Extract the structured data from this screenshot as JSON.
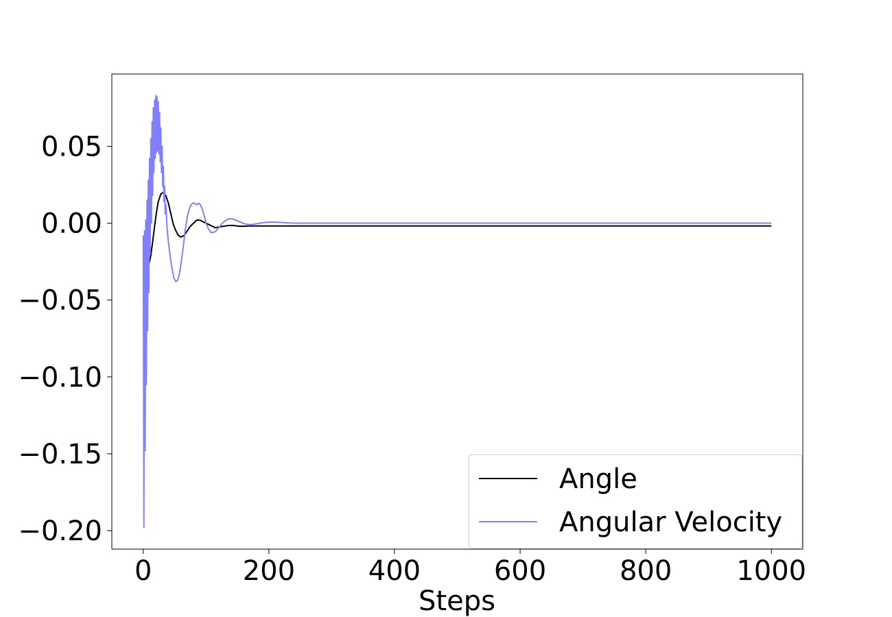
{
  "chart_data": {
    "type": "line",
    "title": "",
    "xlabel": "Steps",
    "ylabel": "",
    "xlim": [
      -50,
      1050
    ],
    "ylim": [
      -0.212,
      0.097
    ],
    "xticks": [
      0,
      200,
      400,
      600,
      800,
      1000
    ],
    "xtick_labels": [
      "0",
      "200",
      "400",
      "600",
      "800",
      "1000"
    ],
    "yticks": [
      0.05,
      0.0,
      -0.05,
      -0.1,
      -0.15,
      -0.2
    ],
    "ytick_labels": [
      "0.05",
      "0.00",
      "−0.05",
      "−0.10",
      "−0.15",
      "−0.20"
    ],
    "grid": false,
    "legend_position": "lower right",
    "series": [
      {
        "name": "Angle",
        "color": "#000000",
        "x": [
          0,
          3,
          6,
          9,
          12,
          15,
          18,
          21,
          24,
          28,
          32,
          36,
          40,
          44,
          48,
          52,
          56,
          60,
          65,
          70,
          75,
          80,
          85,
          90,
          95,
          100,
          105,
          110,
          115,
          120,
          128,
          136,
          144,
          152,
          160,
          170,
          180,
          195,
          210,
          230,
          260,
          300,
          400,
          600,
          800,
          1000
        ],
        "y": [
          -0.01,
          -0.022,
          -0.028,
          -0.027,
          -0.021,
          -0.012,
          -0.002,
          0.007,
          0.014,
          0.019,
          0.02,
          0.018,
          0.013,
          0.006,
          -0.001,
          -0.005,
          -0.008,
          -0.009,
          -0.008,
          -0.005,
          -0.002,
          0.0,
          0.002,
          0.002,
          0.001,
          0.0,
          -0.001,
          -0.002,
          -0.003,
          -0.0025,
          -0.002,
          -0.0015,
          -0.0015,
          -0.002,
          -0.002,
          -0.0018,
          -0.0018,
          -0.0018,
          -0.0018,
          -0.0018,
          -0.0018,
          -0.0018,
          -0.0018,
          -0.0018,
          -0.0018,
          -0.0018
        ]
      },
      {
        "name": "Angular Velocity",
        "color": "#7f7fff",
        "x": [
          0,
          1,
          2,
          3,
          4,
          5,
          6,
          7,
          8,
          9,
          10,
          11,
          12,
          13,
          14,
          15,
          16,
          17,
          18,
          19,
          20,
          21,
          22,
          23,
          24,
          25,
          26,
          27,
          28,
          29,
          30,
          31,
          32,
          33,
          34,
          35,
          36,
          38,
          40,
          43,
          46,
          49,
          52,
          55,
          58,
          61,
          64,
          67,
          70,
          73,
          76,
          79,
          82,
          85,
          88,
          91,
          94,
          97,
          100,
          104,
          108,
          112,
          116,
          120,
          126,
          132,
          138,
          144,
          150,
          156,
          162,
          170,
          178,
          186,
          195,
          205,
          215,
          225,
          240,
          260,
          290,
          330,
          400,
          500,
          600,
          700,
          800,
          900,
          1000
        ],
        "y": [
          -0.008,
          -0.198,
          -0.005,
          -0.148,
          0.002,
          -0.105,
          0.015,
          -0.07,
          0.028,
          -0.045,
          0.042,
          -0.02,
          0.055,
          0.0,
          0.066,
          0.018,
          0.075,
          0.033,
          0.08,
          0.042,
          0.083,
          0.046,
          0.082,
          0.047,
          0.079,
          0.045,
          0.072,
          0.04,
          0.062,
          0.033,
          0.05,
          0.024,
          0.037,
          0.014,
          0.024,
          0.006,
          0.012,
          -0.004,
          -0.012,
          -0.022,
          -0.03,
          -0.036,
          -0.038,
          -0.037,
          -0.032,
          -0.024,
          -0.014,
          -0.004,
          0.004,
          0.009,
          0.012,
          0.013,
          0.013,
          0.012,
          0.013,
          0.012,
          0.009,
          0.005,
          0.0,
          -0.004,
          -0.006,
          -0.006,
          -0.005,
          -0.003,
          0.0,
          0.002,
          0.003,
          0.0025,
          0.0015,
          0.0005,
          -0.0005,
          -0.001,
          -0.0005,
          0.0,
          0.0005,
          0.0008,
          0.0006,
          0.0003,
          0.0,
          0.0,
          0.0,
          0.0,
          0.0,
          0.0,
          0.0,
          0.0,
          0.0,
          0.0,
          0.0
        ]
      }
    ]
  }
}
